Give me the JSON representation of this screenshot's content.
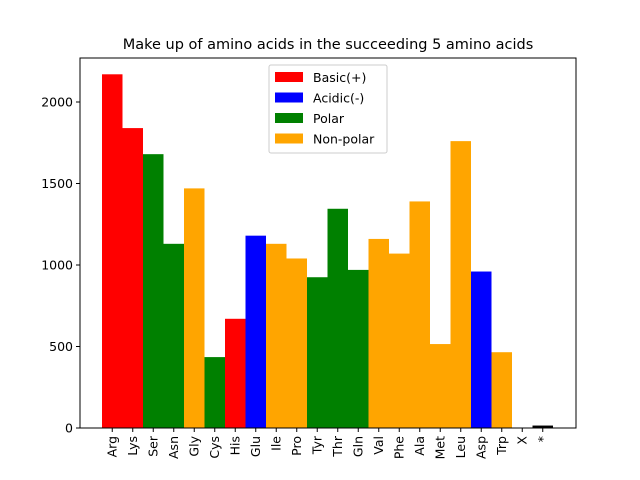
{
  "chart_data": {
    "type": "bar",
    "title": "Make up of amino acids in the succeeding 5 amino acids",
    "xlabel": "",
    "ylabel": "",
    "ylim": [
      0,
      2270
    ],
    "yticks": [
      0,
      500,
      1000,
      1500,
      2000
    ],
    "grid": false,
    "legend_position": "top-center",
    "legend": [
      {
        "name": "Basic(+)",
        "color": "#ff0000"
      },
      {
        "name": "Acidic(-)",
        "color": "#0000ff"
      },
      {
        "name": "Polar",
        "color": "#008000"
      },
      {
        "name": "Non-polar",
        "color": "#ffa500"
      }
    ],
    "bars": [
      {
        "category": "Arg",
        "value": 2170,
        "group": "Basic(+)"
      },
      {
        "category": "Lys",
        "value": 1840,
        "group": "Basic(+)"
      },
      {
        "category": "Ser",
        "value": 1680,
        "group": "Polar"
      },
      {
        "category": "Asn",
        "value": 1130,
        "group": "Polar"
      },
      {
        "category": "Gly",
        "value": 1470,
        "group": "Non-polar"
      },
      {
        "category": "Cys",
        "value": 435,
        "group": "Polar"
      },
      {
        "category": "His",
        "value": 670,
        "group": "Basic(+)"
      },
      {
        "category": "Glu",
        "value": 1180,
        "group": "Acidic(-)"
      },
      {
        "category": "Ile",
        "value": 1130,
        "group": "Non-polar"
      },
      {
        "category": "Pro",
        "value": 1040,
        "group": "Non-polar"
      },
      {
        "category": "Tyr",
        "value": 925,
        "group": "Polar"
      },
      {
        "category": "Thr",
        "value": 1345,
        "group": "Polar"
      },
      {
        "category": "Gln",
        "value": 970,
        "group": "Polar"
      },
      {
        "category": "Val",
        "value": 1160,
        "group": "Non-polar"
      },
      {
        "category": "Phe",
        "value": 1070,
        "group": "Non-polar"
      },
      {
        "category": "Ala",
        "value": 1390,
        "group": "Non-polar"
      },
      {
        "category": "Met",
        "value": 515,
        "group": "Non-polar"
      },
      {
        "category": "Leu",
        "value": 1760,
        "group": "Non-polar"
      },
      {
        "category": "Asp",
        "value": 960,
        "group": "Acidic(-)"
      },
      {
        "category": "Trp",
        "value": 465,
        "group": "Non-polar"
      },
      {
        "category": "X",
        "value": 0,
        "group": ""
      },
      {
        "category": "*",
        "value": 15,
        "group": "",
        "color": "#000000"
      }
    ]
  }
}
